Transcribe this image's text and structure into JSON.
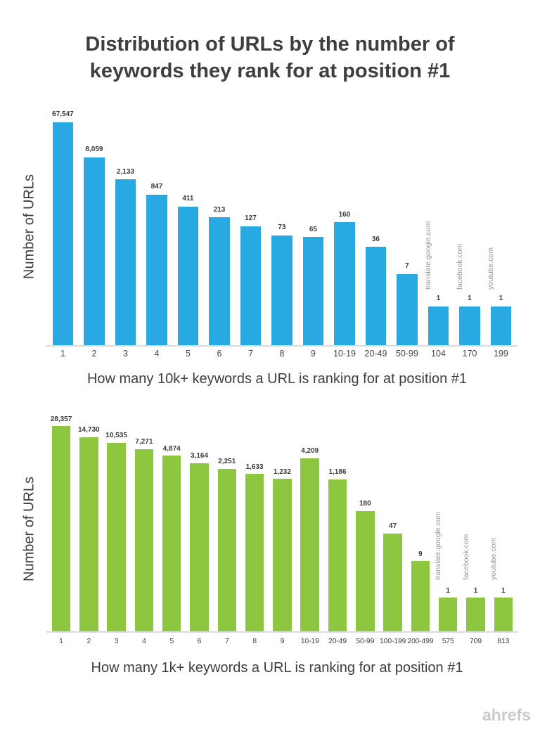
{
  "page": {
    "title_line1": "Distribution of URLs by the number of",
    "title_line2": "keywords they rank for at position #1",
    "brand": "ahrefs",
    "colors": {
      "blue_bar": "#29A9E1",
      "green_bar": "#8DC63F",
      "title_text": "#3E3E3E",
      "axis_title_text": "#3E3E3E",
      "value_label_text": "#3A3A3A",
      "category_label_text": "#454545",
      "annotation_text": "#969696",
      "brand_text": "#CACACA",
      "axis_line": "#DBDBDB"
    }
  },
  "chart_data": [
    {
      "type": "bar",
      "title": "Distribution of URLs by the number of keywords they rank for at position #1",
      "ylabel": "Number of URLs",
      "xlabel": "How many 10k+ keywords a URL is ranking for at position #1",
      "categories": [
        "1",
        "2",
        "3",
        "4",
        "5",
        "6",
        "7",
        "8",
        "9",
        "10-19",
        "20-49",
        "50-99",
        "104",
        "170",
        "199"
      ],
      "values": [
        67547,
        8059,
        2133,
        847,
        411,
        213,
        127,
        73,
        65,
        160,
        36,
        7,
        1,
        1,
        1
      ],
      "value_labels": [
        "67,547",
        "8,059",
        "2,133",
        "847",
        "411",
        "213",
        "127",
        "73",
        "65",
        "160",
        "36",
        "7",
        "1",
        "1",
        "1"
      ],
      "bar_annotations": [
        {
          "index": 12,
          "label": "translate.google.com"
        },
        {
          "index": 13,
          "label": "facebook.com"
        },
        {
          "index": 14,
          "label": "youtube.com"
        }
      ],
      "bar_color": "#29A9E1",
      "yscale": "log",
      "grid": false,
      "legend": null
    },
    {
      "type": "bar",
      "title": "Distribution of URLs by the number of keywords they rank for at position #1",
      "ylabel": "Number of URLs",
      "xlabel": "How many 1k+ keywords a URL is ranking for at position #1",
      "categories": [
        "1",
        "2",
        "3",
        "4",
        "5",
        "6",
        "7",
        "8",
        "9",
        "10-19",
        "20-49",
        "50-99",
        "100-199",
        "200-499",
        "575",
        "709",
        "813"
      ],
      "values": [
        28357,
        14730,
        10535,
        7271,
        4874,
        3164,
        2251,
        1633,
        1232,
        4209,
        1186,
        180,
        47,
        9,
        1,
        1,
        1
      ],
      "value_labels": [
        "28,357",
        "14,730",
        "10,535",
        "7,271",
        "4,874",
        "3,164",
        "2,251",
        "1,633",
        "1,232",
        "4,209",
        "1,186",
        "180",
        "47",
        "9",
        "1",
        "1",
        "1"
      ],
      "bar_annotations": [
        {
          "index": 14,
          "label": "translate.google.com"
        },
        {
          "index": 15,
          "label": "facebook.com"
        },
        {
          "index": 16,
          "label": "youtube.com"
        }
      ],
      "bar_color": "#8DC63F",
      "yscale": "log",
      "grid": false,
      "legend": null
    }
  ]
}
